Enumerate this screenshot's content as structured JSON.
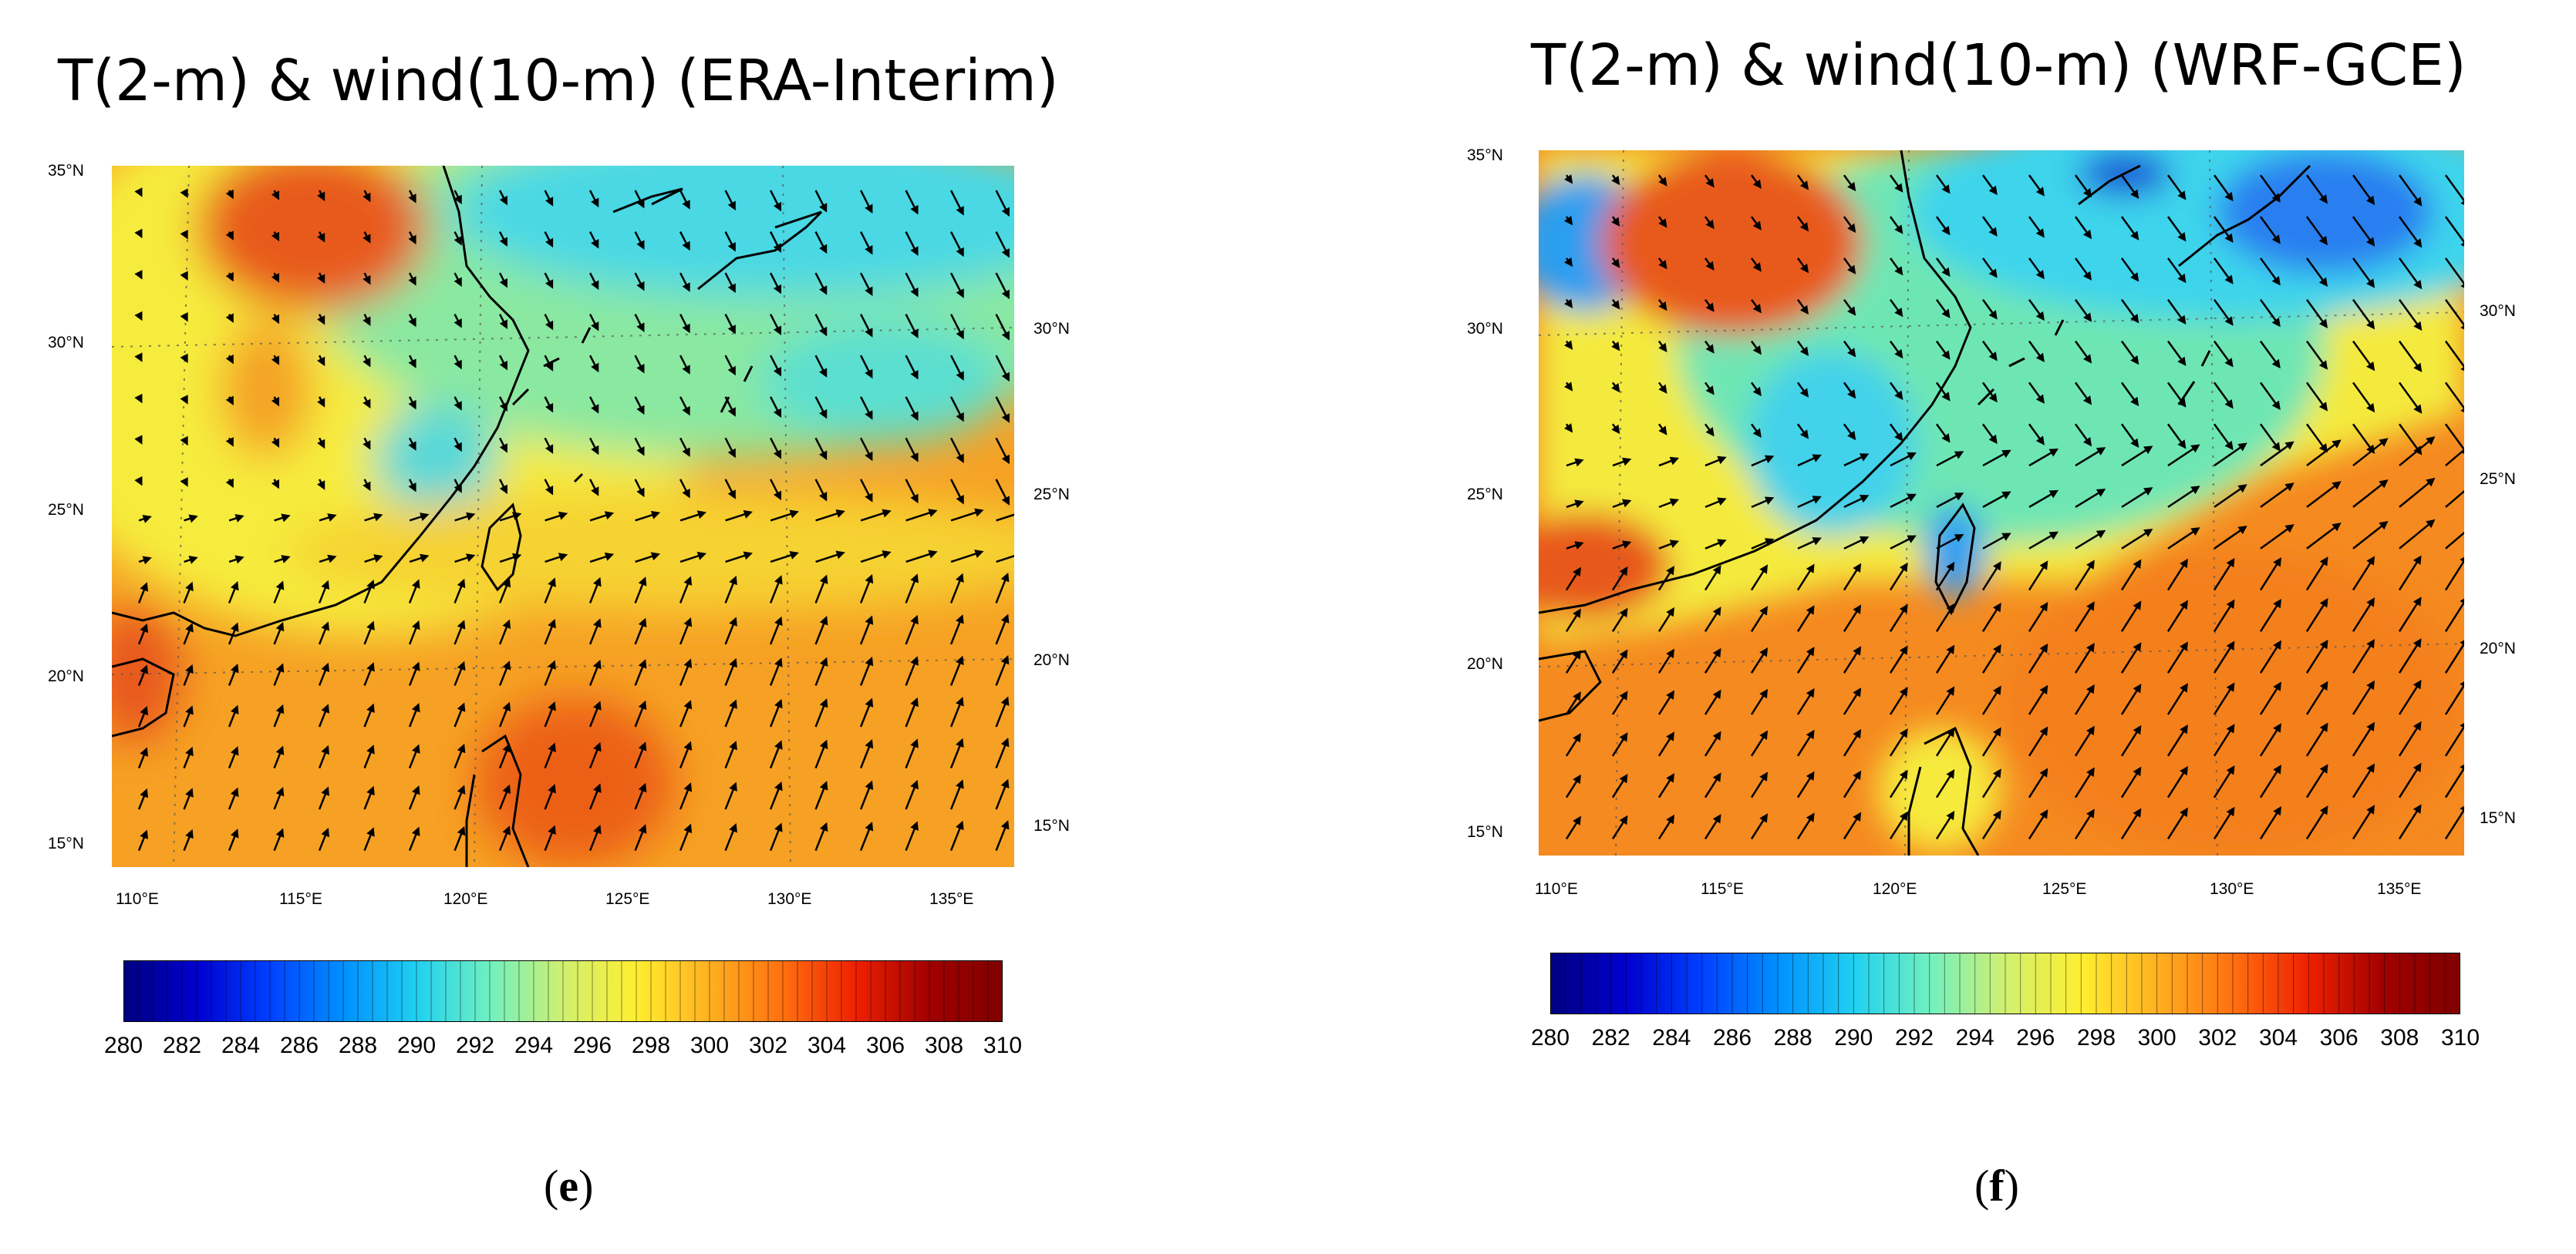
{
  "panels": [
    {
      "id": "e",
      "title": "T(2-m) & wind(10-m) (ERA-Interim)",
      "label_open": "(",
      "label_letter": "e",
      "label_close": ")",
      "lat_left_ticks": [
        "35°N",
        "30°N",
        "25°N",
        "20°N",
        "15°N"
      ],
      "lat_right_ticks": [
        "30°N",
        "25°N",
        "20°N",
        "15°N"
      ],
      "lon_ticks": [
        "110°E",
        "115°E",
        "120°E",
        "125°E",
        "130°E",
        "135°E"
      ]
    },
    {
      "id": "f",
      "title": "T(2-m) & wind(10-m) (WRF-GCE)",
      "label_open": "(",
      "label_letter": "f",
      "label_close": ")",
      "lat_left_ticks": [
        "35°N",
        "30°N",
        "25°N",
        "20°N",
        "15°N"
      ],
      "lat_right_ticks": [
        "30°N",
        "25°N",
        "20°N",
        "15°N"
      ],
      "lon_ticks": [
        "110°E",
        "115°E",
        "120°E",
        "125°E",
        "130°E",
        "135°E"
      ]
    }
  ],
  "colorbar": {
    "ticks": [
      "280",
      "282",
      "284",
      "286",
      "288",
      "290",
      "292",
      "294",
      "296",
      "298",
      "300",
      "302",
      "304",
      "306",
      "308",
      "310"
    ],
    "stops": [
      "#00007f",
      "#0000d0",
      "#0040ff",
      "#0090ff",
      "#20d0f0",
      "#70f0c0",
      "#d0f070",
      "#ffee30",
      "#ffb020",
      "#ff7010",
      "#ee2000",
      "#a00000",
      "#7f0000"
    ]
  },
  "field_colors": {
    "cold": "#2a7ff0",
    "cool": "#3ad2ee",
    "mild": "#8eea9a",
    "warm": "#f8f23a",
    "hot": "#f8a020",
    "hotter": "#f47a1c",
    "hottest": "#e84a14",
    "coast": "#000000"
  }
}
